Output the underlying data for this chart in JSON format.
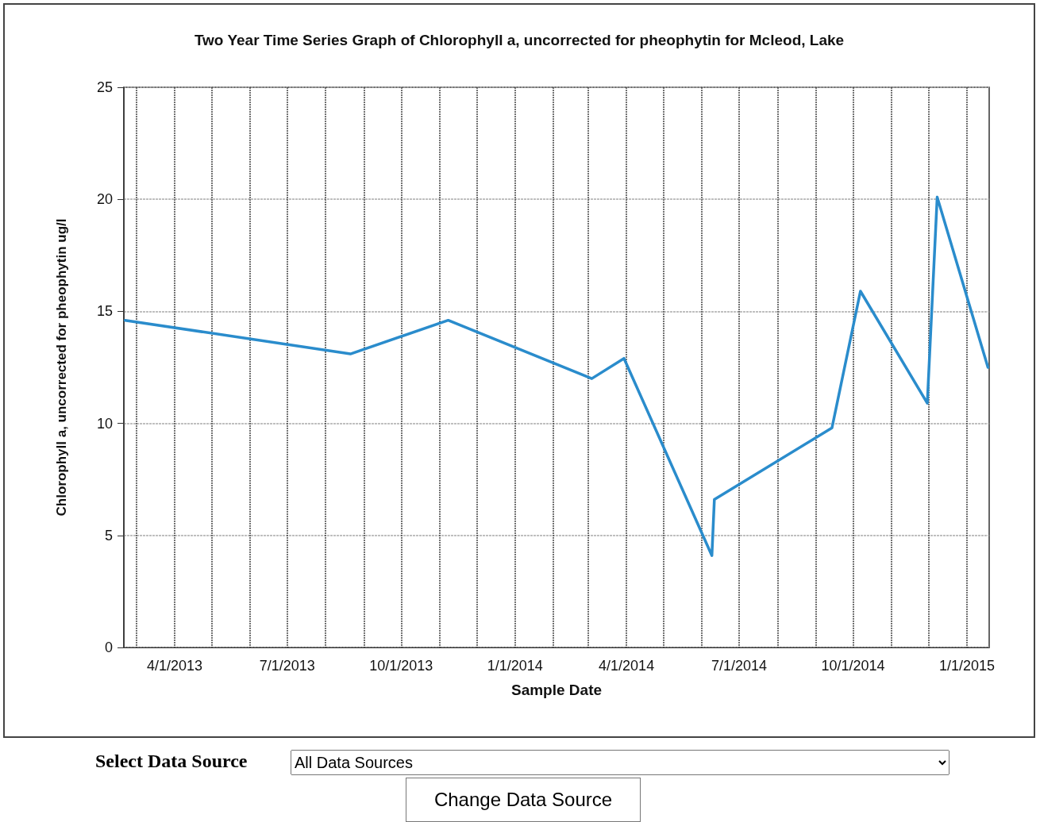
{
  "chart_data": {
    "type": "line",
    "title": "Two Year Time Series Graph of Chlorophyll a, uncorrected for pheophytin for Mcleod, Lake",
    "xlabel": "Sample Date",
    "ylabel": "Chlorophyll a, uncorrected for pheophytin ug/l",
    "x": [
      "2013-02-20",
      "2013-08-21",
      "2013-11-08",
      "2014-03-04",
      "2014-03-30",
      "2014-06-09",
      "2014-06-11",
      "2014-09-14",
      "2014-10-07",
      "2014-11-30",
      "2014-12-08",
      "2015-01-18"
    ],
    "series": [
      {
        "color": "#2a8ccc",
        "values": [
          14.6,
          13.1,
          14.6,
          12.0,
          12.9,
          4.1,
          6.6,
          9.8,
          15.9,
          10.9,
          20.1,
          12.5
        ]
      }
    ],
    "xlim": [
      "2013-02-19",
      "2015-01-19"
    ],
    "xticks": [
      {
        "value": "2013-03-01",
        "label": null
      },
      {
        "value": "2013-04-01",
        "label": "4/1/2013"
      },
      {
        "value": "2013-05-01",
        "label": null
      },
      {
        "value": "2013-06-01",
        "label": null
      },
      {
        "value": "2013-07-01",
        "label": "7/1/2013"
      },
      {
        "value": "2013-08-01",
        "label": null
      },
      {
        "value": "2013-09-01",
        "label": null
      },
      {
        "value": "2013-10-01",
        "label": "10/1/2013"
      },
      {
        "value": "2013-11-01",
        "label": null
      },
      {
        "value": "2013-12-01",
        "label": null
      },
      {
        "value": "2014-01-01",
        "label": "1/1/2014"
      },
      {
        "value": "2014-02-01",
        "label": null
      },
      {
        "value": "2014-03-01",
        "label": null
      },
      {
        "value": "2014-04-01",
        "label": "4/1/2014"
      },
      {
        "value": "2014-05-01",
        "label": null
      },
      {
        "value": "2014-06-01",
        "label": null
      },
      {
        "value": "2014-07-01",
        "label": "7/1/2014"
      },
      {
        "value": "2014-08-01",
        "label": null
      },
      {
        "value": "2014-09-01",
        "label": null
      },
      {
        "value": "2014-10-01",
        "label": "10/1/2014"
      },
      {
        "value": "2014-11-01",
        "label": null
      },
      {
        "value": "2014-12-01",
        "label": null
      },
      {
        "value": "2015-01-01",
        "label": "1/1/2015"
      }
    ],
    "ylim": [
      0,
      25
    ],
    "yticks": [
      0,
      5,
      10,
      15,
      20,
      25
    ],
    "grid": true,
    "marker": "none",
    "line_style": "solid",
    "annotations": [
      "Select Data Source",
      "All Data Sources",
      "Change Data Source"
    ]
  }
}
